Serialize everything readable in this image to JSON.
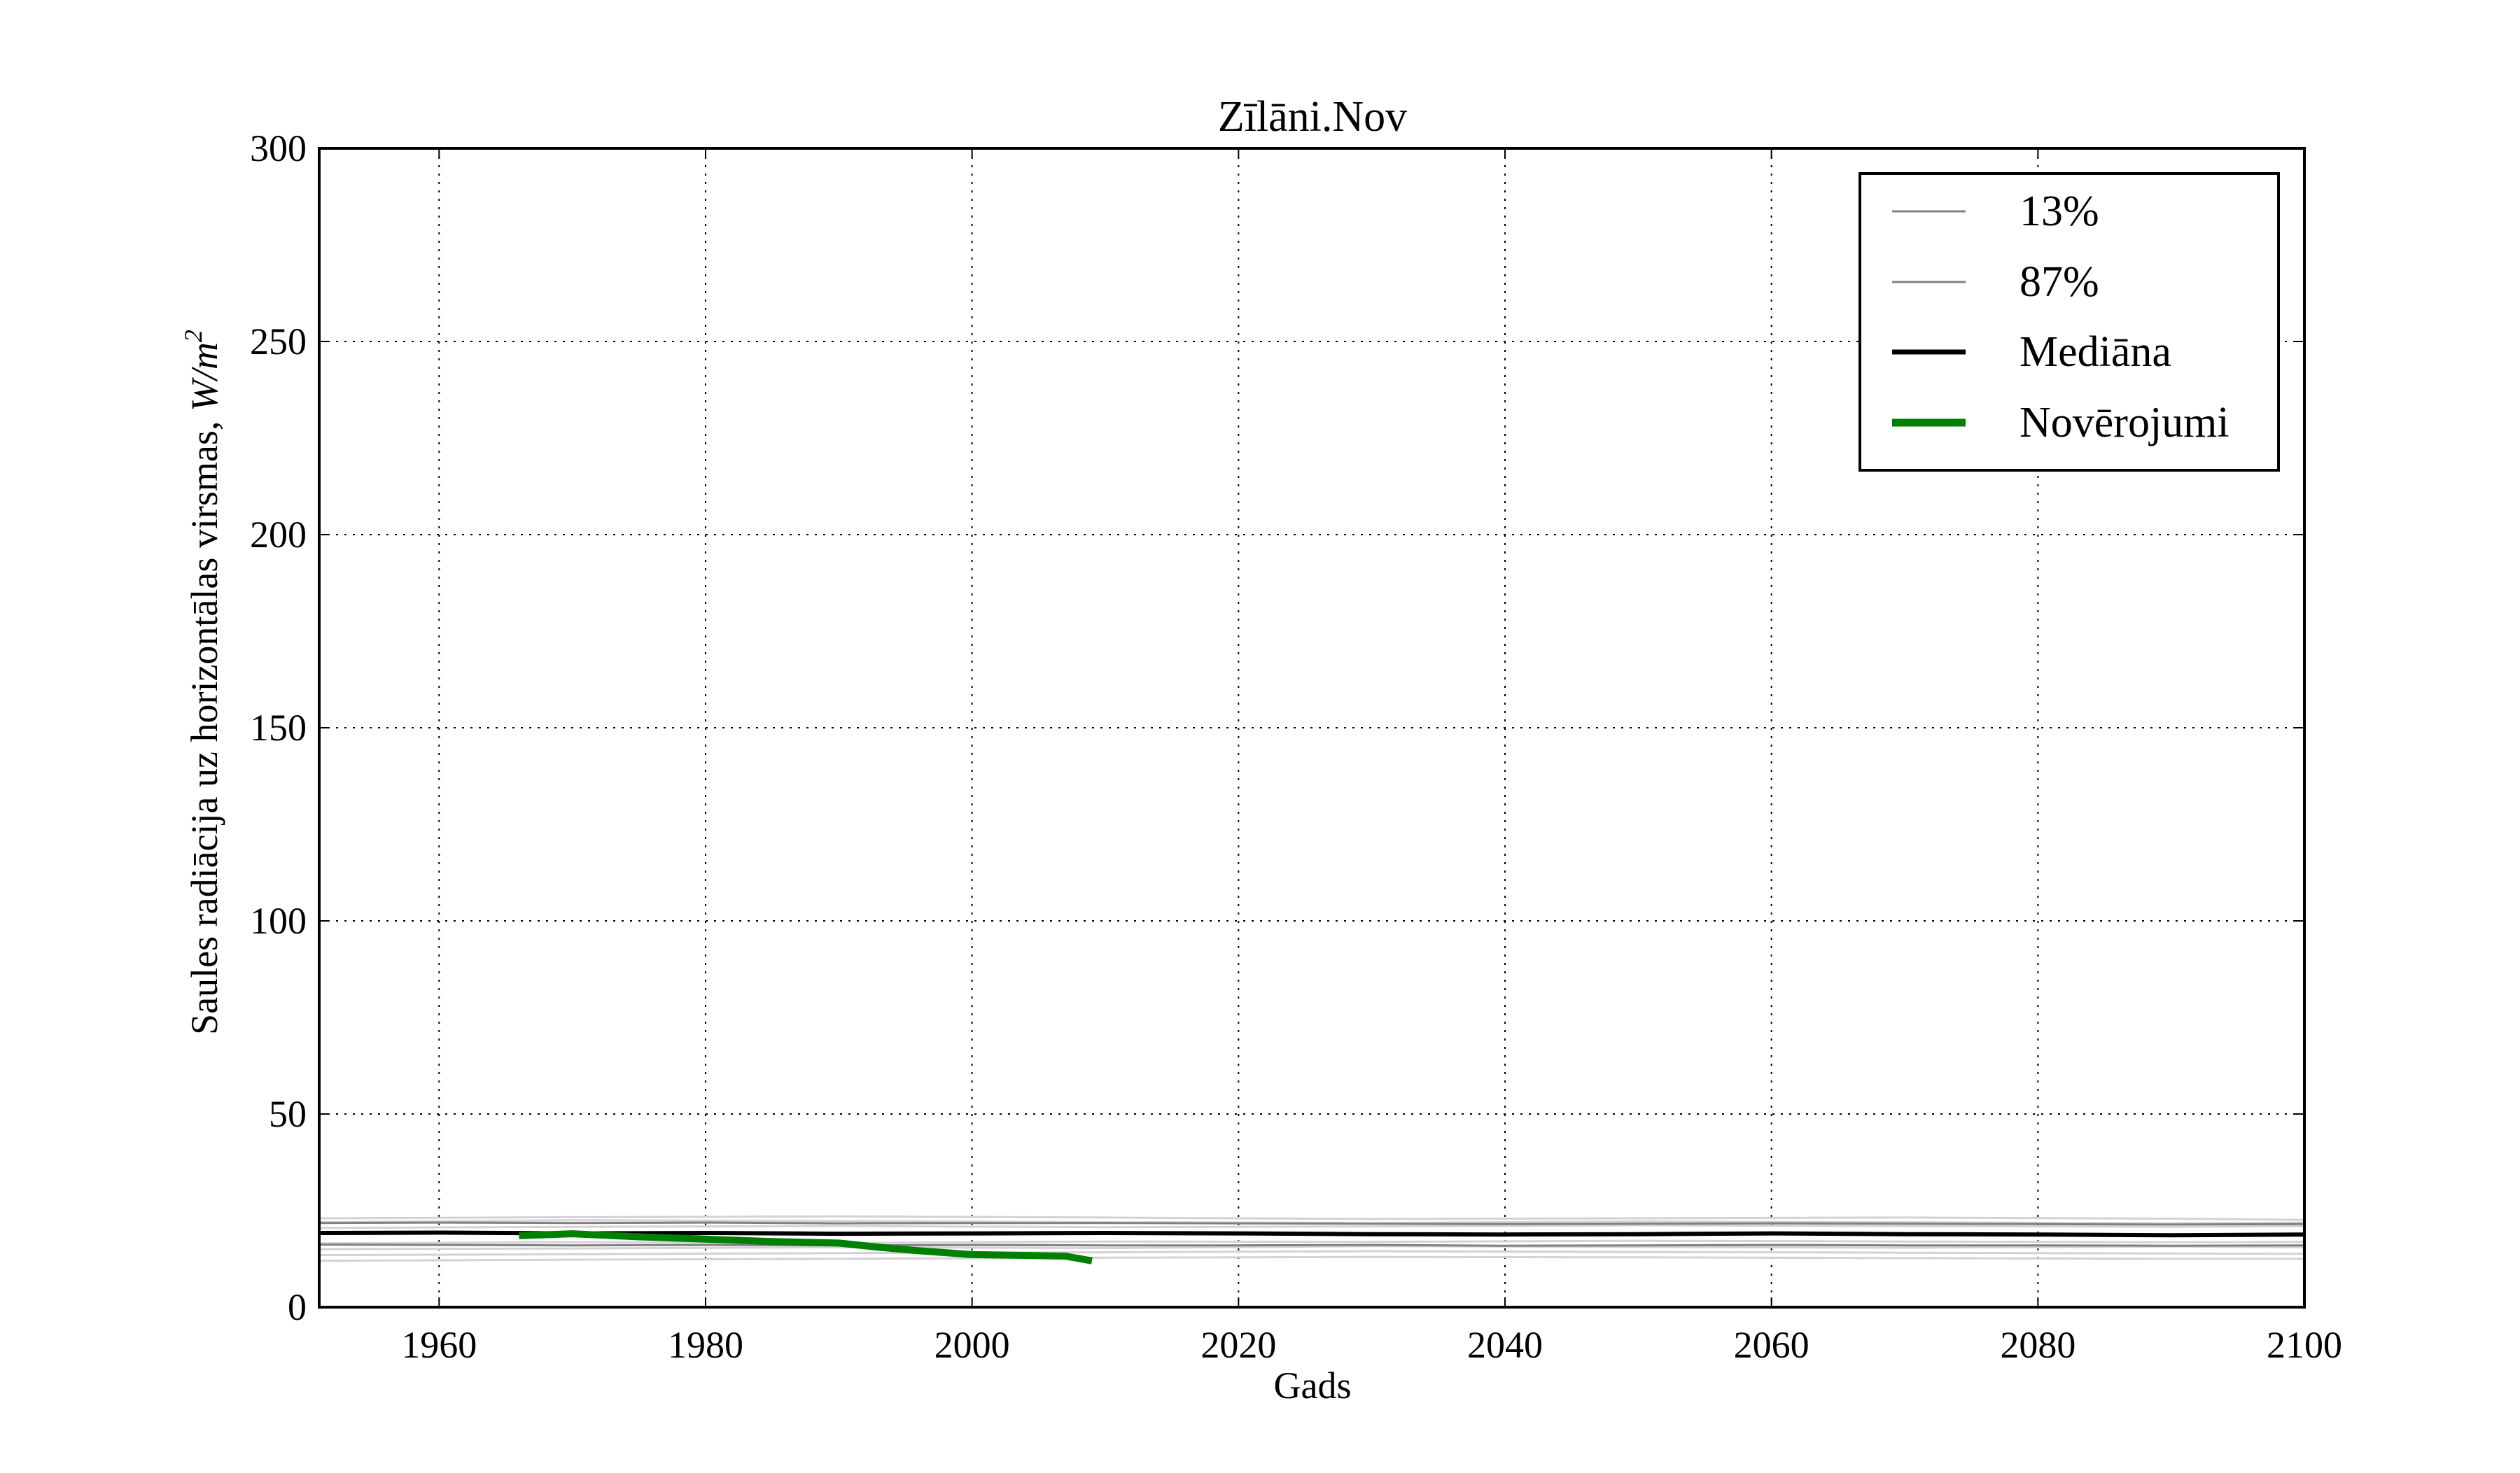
{
  "chart_data": {
    "type": "line",
    "title": "Zīlāni.Nov",
    "xlabel": "Gads",
    "ylabel": "Saules radiācija uz horizontālas virsmas, W/m²",
    "ylabel_parts": {
      "text": "Saules radiācija uz horizontālas virsmas, ",
      "unit_base": "W/m",
      "unit_exp": "2"
    },
    "xlim": [
      1951,
      2100
    ],
    "ylim": [
      0,
      300
    ],
    "x_ticks": [
      1960,
      1980,
      2000,
      2020,
      2040,
      2060,
      2080,
      2100
    ],
    "y_ticks": [
      0,
      50,
      100,
      150,
      200,
      250,
      300
    ],
    "grid": true,
    "legend_position": "top-right",
    "legend": [
      {
        "label": "13%",
        "color": "#808080",
        "style": "thin"
      },
      {
        "label": "87%",
        "color": "#808080",
        "style": "thin"
      },
      {
        "label": "Mediāna",
        "color": "#000000",
        "style": "medium"
      },
      {
        "label": "Novērojumi",
        "color": "#008000",
        "style": "thick"
      }
    ],
    "ensemble_members": [
      {
        "x": [
          1951,
          1970,
          1990,
          2010,
          2030,
          2050,
          2070,
          2090,
          2100
        ],
        "y": [
          12.0,
          12.3,
          12.5,
          12.8,
          13.0,
          12.9,
          12.7,
          12.5,
          12.5
        ]
      },
      {
        "x": [
          1951,
          1970,
          1990,
          2010,
          2030,
          2050,
          2070,
          2090,
          2100
        ],
        "y": [
          13.5,
          13.7,
          14.0,
          14.2,
          14.5,
          14.3,
          14.1,
          13.9,
          13.8
        ]
      },
      {
        "x": [
          1951,
          1970,
          1990,
          2010,
          2030,
          2050,
          2070,
          2090,
          2100
        ],
        "y": [
          15.0,
          15.2,
          15.5,
          15.3,
          15.8,
          15.6,
          15.4,
          15.7,
          15.5
        ]
      },
      {
        "x": [
          1951,
          1970,
          1990,
          2010,
          2030,
          2050,
          2070,
          2090,
          2100
        ],
        "y": [
          16.5,
          16.8,
          16.6,
          17.0,
          16.9,
          17.2,
          17.0,
          16.8,
          16.9
        ]
      },
      {
        "x": [
          1951,
          1970,
          1990,
          2010,
          2030,
          2050,
          2070,
          2090,
          2100
        ],
        "y": [
          20.5,
          20.8,
          21.0,
          20.7,
          20.9,
          21.2,
          21.0,
          20.8,
          21.0
        ]
      },
      {
        "x": [
          1951,
          1970,
          1990,
          2010,
          2030,
          2050,
          2070,
          2090,
          2100
        ],
        "y": [
          22.0,
          22.5,
          22.3,
          22.0,
          21.8,
          22.2,
          22.0,
          21.7,
          21.9
        ]
      },
      {
        "x": [
          1951,
          1970,
          1990,
          2010,
          2030,
          2050,
          2070,
          2090,
          2100
        ],
        "y": [
          23.0,
          23.3,
          23.5,
          23.2,
          22.8,
          23.0,
          23.2,
          22.9,
          22.6
        ]
      }
    ],
    "series": [
      {
        "name": "13%",
        "color": "#808080",
        "x": [
          1951,
          1960,
          1970,
          1980,
          1990,
          2000,
          2010,
          2020,
          2030,
          2040,
          2050,
          2060,
          2070,
          2080,
          2090,
          2100
        ],
        "y": [
          16.2,
          16.1,
          16.0,
          16.1,
          16.0,
          16.1,
          16.0,
          16.0,
          16.1,
          15.9,
          16.0,
          16.1,
          16.0,
          16.0,
          15.9,
          16.0
        ]
      },
      {
        "name": "87%",
        "color": "#808080",
        "x": [
          1951,
          1960,
          1970,
          1980,
          1990,
          2000,
          2010,
          2020,
          2030,
          2040,
          2050,
          2060,
          2070,
          2080,
          2090,
          2100
        ],
        "y": [
          21.8,
          21.9,
          21.8,
          21.9,
          21.7,
          21.8,
          21.8,
          21.7,
          21.6,
          21.5,
          21.6,
          21.7,
          21.6,
          21.5,
          21.4,
          21.5
        ]
      },
      {
        "name": "Mediāna",
        "color": "#000000",
        "x": [
          1951,
          1960,
          1970,
          1980,
          1990,
          2000,
          2010,
          2020,
          2030,
          2040,
          2050,
          2060,
          2070,
          2080,
          2090,
          2100
        ],
        "y": [
          19.2,
          19.3,
          19.1,
          19.2,
          19.0,
          19.1,
          19.2,
          19.1,
          18.9,
          18.8,
          18.9,
          19.1,
          18.9,
          18.8,
          18.6,
          18.8
        ]
      },
      {
        "name": "Novērojumi",
        "color": "#008000",
        "x": [
          1966,
          1970,
          1975,
          1980,
          1985,
          1990,
          1993,
          1996,
          2000,
          2004,
          2007,
          2009
        ],
        "y": [
          18.5,
          19.0,
          18.2,
          17.6,
          17.0,
          16.6,
          15.5,
          14.6,
          13.6,
          13.4,
          13.2,
          12.0
        ]
      }
    ]
  }
}
